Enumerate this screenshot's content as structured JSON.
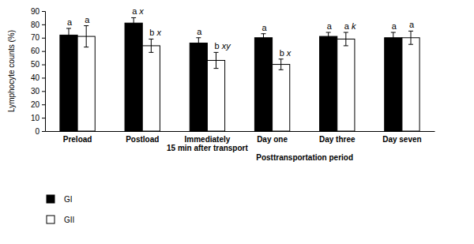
{
  "chart_data": {
    "type": "bar",
    "y_label": "Lymphocyte counts (%)",
    "categories": [
      "Preload",
      "Postload",
      "Immediately\n15 min after transport",
      "Day one",
      "Day three",
      "Day seven"
    ],
    "annotations": [
      "Posttransportation period"
    ],
    "series": [
      {
        "name": "GI",
        "color": "#000000",
        "values": [
          72,
          81,
          66,
          70,
          71,
          70
        ],
        "errors": [
          5,
          4,
          4,
          3,
          3,
          4
        ],
        "significance": [
          "a",
          "a x",
          "a",
          "a",
          "a",
          "a"
        ]
      },
      {
        "name": "GII",
        "color": "#ffffff",
        "values": [
          71,
          64,
          53,
          50,
          69,
          70
        ],
        "errors": [
          8,
          5,
          6,
          4,
          5,
          5
        ],
        "significance": [
          "a",
          "b x",
          "b xy",
          "b x",
          "a k",
          "a"
        ]
      }
    ],
    "ylim": [
      0,
      90
    ],
    "yticks": [
      0,
      10,
      20,
      30,
      40,
      50,
      60,
      70,
      80,
      90
    ],
    "grid": false,
    "legend": "bottom-left"
  }
}
